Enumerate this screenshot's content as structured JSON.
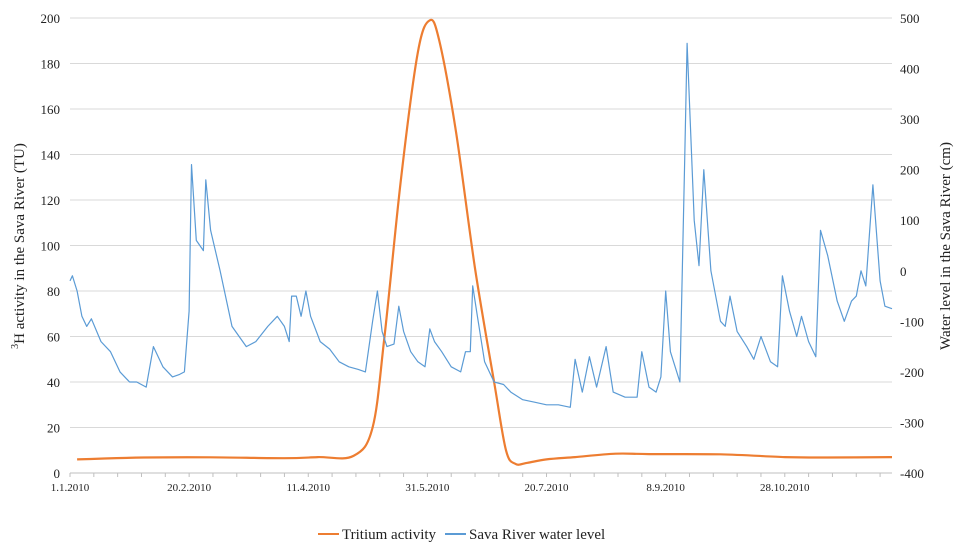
{
  "chart_data": {
    "type": "line",
    "x_axis": {
      "type": "date",
      "range": [
        "2010-01-01",
        "2010-12-12"
      ],
      "tick_labels": [
        "1.1.2010",
        "20.2.2010",
        "11.4.2010",
        "31.5.2010",
        "20.7.2010",
        "8.9.2010",
        "28.10.2010"
      ]
    },
    "y_left": {
      "label_superscript": "3",
      "label_text": "H activity in the Sava River (TU)",
      "range": [
        0,
        200
      ],
      "ticks": [
        0,
        20,
        40,
        60,
        80,
        100,
        120,
        140,
        160,
        180,
        200
      ]
    },
    "y_right": {
      "label": "Water level in the Sava River (cm)",
      "range": [
        -400,
        500
      ],
      "ticks": [
        -400,
        -300,
        -200,
        -100,
        0,
        100,
        200,
        300,
        400,
        500
      ]
    },
    "grid": "horizontal",
    "legend_position": "bottom",
    "series": [
      {
        "name": "Tritium activity",
        "axis": "left",
        "color": "#ED7D31",
        "points": [
          [
            "2010-01-04",
            6
          ],
          [
            "2010-02-01",
            6.8
          ],
          [
            "2010-03-01",
            6.9
          ],
          [
            "2010-04-01",
            6.5
          ],
          [
            "2010-04-15",
            7
          ],
          [
            "2010-04-30",
            7.5
          ],
          [
            "2010-05-08",
            20
          ],
          [
            "2010-05-13",
            60
          ],
          [
            "2010-05-20",
            130
          ],
          [
            "2010-05-27",
            185
          ],
          [
            "2010-06-01",
            199
          ],
          [
            "2010-06-05",
            190
          ],
          [
            "2010-06-12",
            150
          ],
          [
            "2010-06-20",
            90
          ],
          [
            "2010-06-28",
            40
          ],
          [
            "2010-07-03",
            10
          ],
          [
            "2010-07-07",
            4
          ],
          [
            "2010-07-12",
            4.5
          ],
          [
            "2010-07-20",
            6
          ],
          [
            "2010-08-01",
            7
          ],
          [
            "2010-08-18",
            8.5
          ],
          [
            "2010-09-01",
            8.3
          ],
          [
            "2010-10-01",
            8.2
          ],
          [
            "2010-10-28",
            7
          ],
          [
            "2010-11-15",
            6.8
          ],
          [
            "2010-12-12",
            7
          ]
        ]
      },
      {
        "name": "Sava River water level",
        "axis": "right",
        "color": "#5B9BD5",
        "points": [
          [
            "2010-01-01",
            -20
          ],
          [
            "2010-01-02",
            -10
          ],
          [
            "2010-01-04",
            -40
          ],
          [
            "2010-01-06",
            -90
          ],
          [
            "2010-01-08",
            -110
          ],
          [
            "2010-01-10",
            -95
          ],
          [
            "2010-01-14",
            -140
          ],
          [
            "2010-01-18",
            -160
          ],
          [
            "2010-01-22",
            -200
          ],
          [
            "2010-01-26",
            -220
          ],
          [
            "2010-01-29",
            -220
          ],
          [
            "2010-02-02",
            -230
          ],
          [
            "2010-02-05",
            -150
          ],
          [
            "2010-02-09",
            -190
          ],
          [
            "2010-02-13",
            -210
          ],
          [
            "2010-02-16",
            -205
          ],
          [
            "2010-02-18",
            -200
          ],
          [
            "2010-02-20",
            -80
          ],
          [
            "2010-02-21",
            210
          ],
          [
            "2010-02-23",
            60
          ],
          [
            "2010-02-26",
            40
          ],
          [
            "2010-02-27",
            180
          ],
          [
            "2010-03-01",
            80
          ],
          [
            "2010-03-05",
            0
          ],
          [
            "2010-03-10",
            -110
          ],
          [
            "2010-03-16",
            -150
          ],
          [
            "2010-03-20",
            -140
          ],
          [
            "2010-03-25",
            -110
          ],
          [
            "2010-03-29",
            -90
          ],
          [
            "2010-04-01",
            -110
          ],
          [
            "2010-04-03",
            -140
          ],
          [
            "2010-04-04",
            -50
          ],
          [
            "2010-04-06",
            -50
          ],
          [
            "2010-04-08",
            -90
          ],
          [
            "2010-04-10",
            -40
          ],
          [
            "2010-04-12",
            -90
          ],
          [
            "2010-04-16",
            -140
          ],
          [
            "2010-04-20",
            -155
          ],
          [
            "2010-04-24",
            -180
          ],
          [
            "2010-04-28",
            -190
          ],
          [
            "2010-05-02",
            -195
          ],
          [
            "2010-05-05",
            -200
          ],
          [
            "2010-05-08",
            -100
          ],
          [
            "2010-05-10",
            -40
          ],
          [
            "2010-05-12",
            -120
          ],
          [
            "2010-05-14",
            -150
          ],
          [
            "2010-05-17",
            -145
          ],
          [
            "2010-05-19",
            -70
          ],
          [
            "2010-05-21",
            -120
          ],
          [
            "2010-05-24",
            -160
          ],
          [
            "2010-05-27",
            -180
          ],
          [
            "2010-05-30",
            -190
          ],
          [
            "2010-06-01",
            -115
          ],
          [
            "2010-06-03",
            -140
          ],
          [
            "2010-06-06",
            -160
          ],
          [
            "2010-06-10",
            -190
          ],
          [
            "2010-06-14",
            -200
          ],
          [
            "2010-06-16",
            -160
          ],
          [
            "2010-06-18",
            -160
          ],
          [
            "2010-06-19",
            -30
          ],
          [
            "2010-06-21",
            -90
          ],
          [
            "2010-06-24",
            -180
          ],
          [
            "2010-06-28",
            -220
          ],
          [
            "2010-07-02",
            -225
          ],
          [
            "2010-07-05",
            -240
          ],
          [
            "2010-07-10",
            -255
          ],
          [
            "2010-07-15",
            -260
          ],
          [
            "2010-07-20",
            -265
          ],
          [
            "2010-07-25",
            -265
          ],
          [
            "2010-07-30",
            -270
          ],
          [
            "2010-08-01",
            -175
          ],
          [
            "2010-08-04",
            -240
          ],
          [
            "2010-08-07",
            -170
          ],
          [
            "2010-08-10",
            -230
          ],
          [
            "2010-08-14",
            -150
          ],
          [
            "2010-08-17",
            -240
          ],
          [
            "2010-08-22",
            -250
          ],
          [
            "2010-08-27",
            -250
          ],
          [
            "2010-08-29",
            -160
          ],
          [
            "2010-09-01",
            -230
          ],
          [
            "2010-09-04",
            -240
          ],
          [
            "2010-09-06",
            -210
          ],
          [
            "2010-09-08",
            -40
          ],
          [
            "2010-09-10",
            -160
          ],
          [
            "2010-09-14",
            -220
          ],
          [
            "2010-09-16",
            220
          ],
          [
            "2010-09-17",
            450
          ],
          [
            "2010-09-20",
            100
          ],
          [
            "2010-09-22",
            10
          ],
          [
            "2010-09-24",
            200
          ],
          [
            "2010-09-27",
            0
          ],
          [
            "2010-10-01",
            -100
          ],
          [
            "2010-10-03",
            -110
          ],
          [
            "2010-10-05",
            -50
          ],
          [
            "2010-10-08",
            -120
          ],
          [
            "2010-10-12",
            -150
          ],
          [
            "2010-10-15",
            -175
          ],
          [
            "2010-10-18",
            -130
          ],
          [
            "2010-10-22",
            -180
          ],
          [
            "2010-10-25",
            -190
          ],
          [
            "2010-10-27",
            -10
          ],
          [
            "2010-10-30",
            -80
          ],
          [
            "2010-11-02",
            -130
          ],
          [
            "2010-11-04",
            -90
          ],
          [
            "2010-11-07",
            -140
          ],
          [
            "2010-11-10",
            -170
          ],
          [
            "2010-11-12",
            80
          ],
          [
            "2010-11-15",
            30
          ],
          [
            "2010-11-19",
            -60
          ],
          [
            "2010-11-22",
            -100
          ],
          [
            "2010-11-25",
            -60
          ],
          [
            "2010-11-27",
            -50
          ],
          [
            "2010-11-29",
            0
          ],
          [
            "2010-12-01",
            -30
          ],
          [
            "2010-12-04",
            170
          ],
          [
            "2010-12-07",
            -20
          ],
          [
            "2010-12-09",
            -70
          ],
          [
            "2010-12-12",
            -75
          ]
        ]
      }
    ]
  }
}
